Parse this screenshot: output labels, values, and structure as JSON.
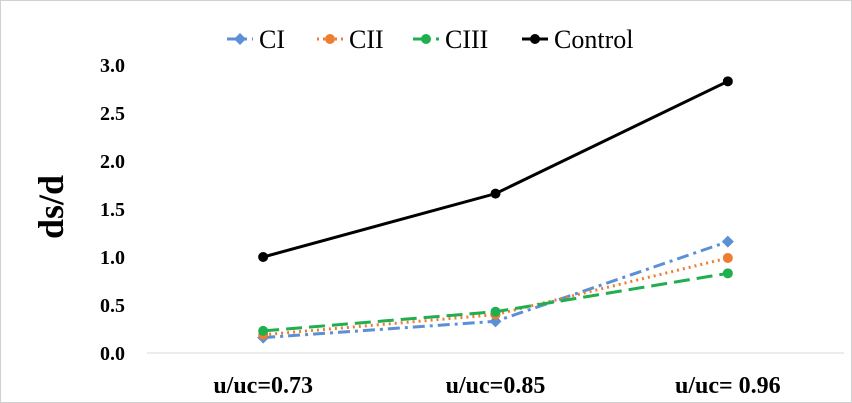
{
  "chart_data": {
    "type": "line",
    "title": "",
    "xlabel": "",
    "ylabel": "ds/d",
    "categories": [
      "u/uc=0.73",
      "u/uc=0.85",
      "u/uc= 0.96"
    ],
    "ylim": [
      0,
      3.0
    ],
    "yticks": [
      0.0,
      0.5,
      1.0,
      1.5,
      2.0,
      2.5,
      3.0
    ],
    "ytick_labels": [
      "0.0",
      "0.5",
      "1.0",
      "1.5",
      "2.0",
      "2.5",
      "3.0"
    ],
    "grid": false,
    "legend_position": "top",
    "series": [
      {
        "name": "CI",
        "values": [
          0.16,
          0.33,
          1.16
        ],
        "color": "#5B8FD6",
        "dash": "dash-dot",
        "marker": "diamond"
      },
      {
        "name": "CII",
        "values": [
          0.19,
          0.4,
          0.99
        ],
        "color": "#ED7D31",
        "dash": "dotted",
        "marker": "circle"
      },
      {
        "name": "CIII",
        "values": [
          0.23,
          0.43,
          0.83
        ],
        "color": "#1FAF4F",
        "dash": "long-dash",
        "marker": "circle"
      },
      {
        "name": "Control",
        "values": [
          1.0,
          1.66,
          2.83
        ],
        "color": "#000000",
        "dash": "solid",
        "marker": "circle"
      }
    ]
  }
}
